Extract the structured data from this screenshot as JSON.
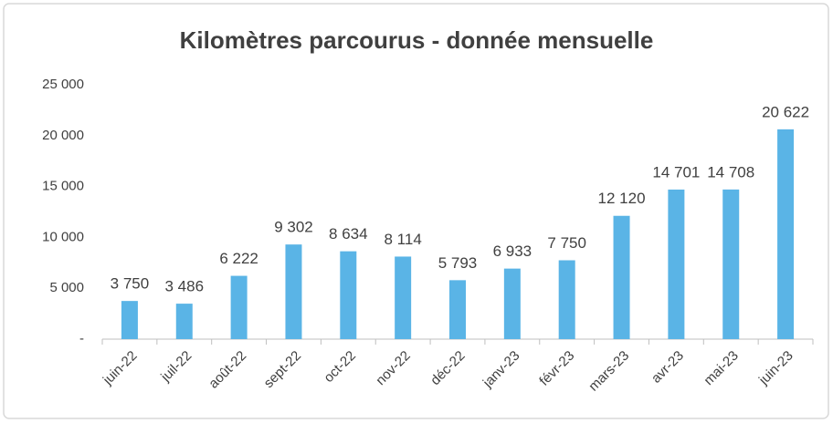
{
  "chart_data": {
    "type": "bar",
    "title": "Kilomètres parcourus - donnée mensuelle",
    "categories": [
      "juin-22",
      "juil-22",
      "août-22",
      "sept-22",
      "oct-22",
      "nov-22",
      "déc-22",
      "janv-23",
      "févr-23",
      "mars-23",
      "avr-23",
      "mai-23",
      "juin-23"
    ],
    "values": [
      3750,
      3486,
      6222,
      9302,
      8634,
      8114,
      5793,
      6933,
      7750,
      12120,
      14701,
      14708,
      20622
    ],
    "value_labels": [
      "3 750",
      "3 486",
      "6 222",
      "9 302",
      "8 634",
      "8 114",
      "5 793",
      "6 933",
      "7 750",
      "12 120",
      "14 701",
      "14 708",
      "20 622"
    ],
    "color": "#5ab4e6",
    "ylim": [
      0,
      25000
    ],
    "yticks": [
      {
        "value": 0,
        "label": "-"
      },
      {
        "value": 5000,
        "label": "5 000"
      },
      {
        "value": 10000,
        "label": "10 000"
      },
      {
        "value": 15000,
        "label": "15 000"
      },
      {
        "value": 20000,
        "label": "20 000"
      },
      {
        "value": 25000,
        "label": "25 000"
      }
    ],
    "grid": false
  }
}
